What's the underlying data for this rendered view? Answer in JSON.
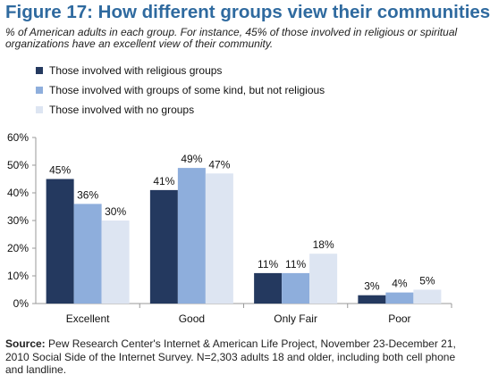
{
  "header": {
    "title": "Figure 17: How different groups view their communities",
    "subtitle": "% of American adults in each group. For instance, 45% of those involved in religious or spiritual organizations have an excellent view of their community."
  },
  "colors": {
    "series": [
      "#24395f",
      "#8eaedc",
      "#dde5f2"
    ],
    "title": "#2f6a9f"
  },
  "chart_data": {
    "type": "bar",
    "title": "Figure 17: How different groups view their communities",
    "categories": [
      "Excellent",
      "Good",
      "Only Fair",
      "Poor"
    ],
    "series": [
      {
        "name": "Those involved with religious groups",
        "values": [
          45,
          41,
          11,
          3
        ]
      },
      {
        "name": "Those involved with  groups of some kind, but not religious",
        "values": [
          36,
          49,
          11,
          4
        ]
      },
      {
        "name": "Those involved with no groups",
        "values": [
          30,
          47,
          18,
          5
        ]
      }
    ],
    "ylim": [
      0,
      60
    ],
    "yticks": [
      "0%",
      "10%",
      "20%",
      "30%",
      "40%",
      "50%",
      "60%"
    ],
    "value_suffix": "%",
    "grid": false,
    "legend_position": "top-left"
  },
  "source": {
    "label": "Source:",
    "text": "  Pew Research Center's Internet & American Life Project, November 23-December 21, 2010 Social Side of the Internet Survey. N=2,303 adults 18 and older, including both cell phone and landline."
  }
}
